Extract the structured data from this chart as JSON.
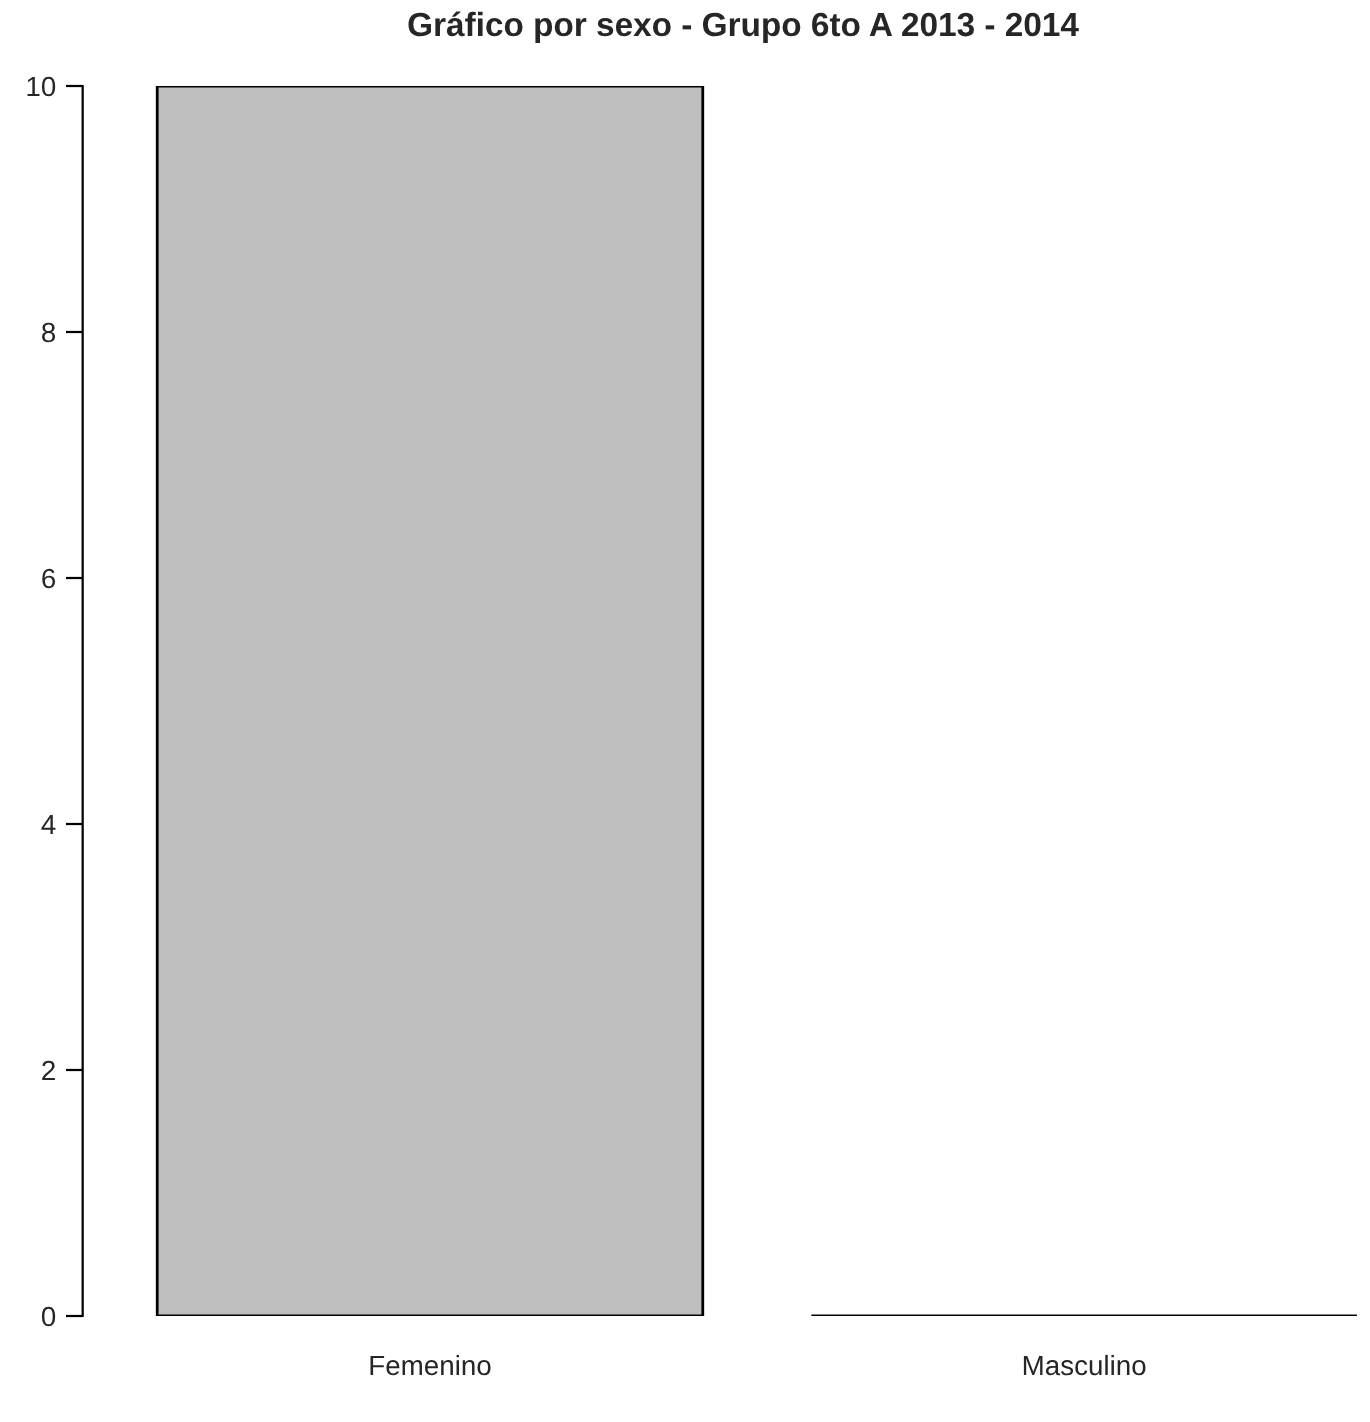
{
  "chart_data": {
    "type": "bar",
    "title": "Gráfico por sexo - Grupo 6to A 2013 - 2014",
    "categories": [
      "Femenino",
      "Masculino"
    ],
    "values": [
      10,
      0
    ],
    "color": "#bebebe",
    "ylim": [
      0,
      10
    ],
    "yticks": [
      0,
      2,
      4,
      6,
      8,
      10
    ],
    "grid": false,
    "legend": false
  }
}
